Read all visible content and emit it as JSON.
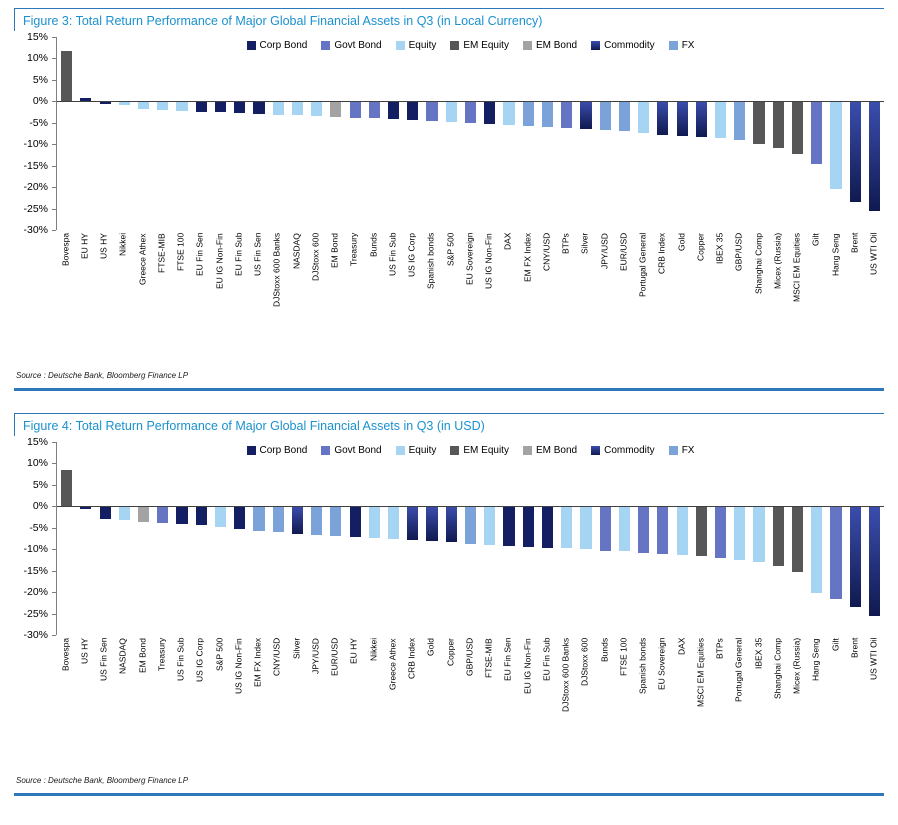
{
  "colors": {
    "corp_bond": "#141f63",
    "govt_bond": "#6674c4",
    "equity": "#a5d5f2",
    "em_equity": "#575757",
    "em_bond": "#a3a3a3",
    "commodity": [
      "#3b4eae",
      "#10194f"
    ],
    "fx": "#7ba3da",
    "title_blue": "#1b91d0",
    "rule_blue": "#2e77b8"
  },
  "chart_data": [
    {
      "type": "bar",
      "title": "Figure 3: Total Return Performance of Major Global Financial Assets in Q3 (in Local Currency)",
      "source": "Source : Deutsche Bank, Bloomberg Finance LP",
      "ylim": [
        -30,
        15
      ],
      "yticks": [
        "15%",
        "10%",
        "5%",
        "0%",
        "-5%",
        "-10%",
        "-15%",
        "-20%",
        "-25%",
        "-30%"
      ],
      "grid": false,
      "legend_position": "top-center",
      "legend": [
        {
          "label": "Corp Bond",
          "key": "corp_bond"
        },
        {
          "label": "Govt Bond",
          "key": "govt_bond"
        },
        {
          "label": "Equity",
          "key": "equity"
        },
        {
          "label": "EM Equity",
          "key": "em_equity"
        },
        {
          "label": "EM Bond",
          "key": "em_bond"
        },
        {
          "label": "Commodity",
          "key": "commodity"
        },
        {
          "label": "FX",
          "key": "fx"
        }
      ],
      "categories": [
        "Bovespa",
        "EU HY",
        "US HY",
        "Nikkei",
        "Greece Athex",
        "FTSE-MIB",
        "FTSE 100",
        "EU Fin Sen",
        "EU IG Non-Fin",
        "EU Fin Sub",
        "US Fin Sen",
        "DJStoxx 600 Banks",
        "NASDAQ",
        "DJStoxx 600",
        "EM Bond",
        "Treasury",
        "Bunds",
        "US Fin Sub",
        "US IG Corp",
        "Spanish bonds",
        "S&P 500",
        "EU Sovereign",
        "US IG Non-Fin",
        "DAX",
        "EM FX Index",
        "CNY/USD",
        "BTPs",
        "Silver",
        "JPY/USD",
        "EUR/USD",
        "Portugal General",
        "CRB Index",
        "Gold",
        "Copper",
        "IBEX 35",
        "GBP/USD",
        "Shanghai Comp",
        "Micex (Russia)",
        "MSCI EM Equities",
        "Gilt",
        "Hang Seng",
        "Brent",
        "US WTI Oil"
      ],
      "values": [
        11.8,
        0.7,
        -0.6,
        -0.9,
        -1.7,
        -2.0,
        -2.2,
        -2.5,
        -2.6,
        -2.8,
        -3.0,
        -3.2,
        -3.3,
        -3.5,
        -3.6,
        -3.8,
        -4.0,
        -4.2,
        -4.4,
        -4.6,
        -4.9,
        -5.0,
        -5.2,
        -5.5,
        -5.7,
        -6.0,
        -6.3,
        -6.5,
        -6.8,
        -7.0,
        -7.3,
        -7.8,
        -8.0,
        -8.3,
        -8.6,
        -9.0,
        -10.0,
        -10.8,
        -12.2,
        -14.5,
        -20.5,
        -23.5,
        -25.5
      ],
      "groups": [
        "em_equity",
        "corp_bond",
        "corp_bond",
        "equity",
        "equity",
        "equity",
        "equity",
        "corp_bond",
        "corp_bond",
        "corp_bond",
        "corp_bond",
        "equity",
        "equity",
        "equity",
        "em_bond",
        "govt_bond",
        "govt_bond",
        "corp_bond",
        "corp_bond",
        "govt_bond",
        "equity",
        "govt_bond",
        "corp_bond",
        "equity",
        "fx",
        "fx",
        "govt_bond",
        "commodity",
        "fx",
        "fx",
        "equity",
        "commodity",
        "commodity",
        "commodity",
        "equity",
        "fx",
        "em_equity",
        "em_equity",
        "em_equity",
        "govt_bond",
        "equity",
        "commodity",
        "commodity"
      ]
    },
    {
      "type": "bar",
      "title": "Figure 4: Total Return Performance of Major Global Financial Assets in Q3 (in USD)",
      "source": "Source : Deutsche Bank, Bloomberg Finance LP",
      "ylim": [
        -30,
        15
      ],
      "yticks": [
        "15%",
        "10%",
        "5%",
        "0%",
        "-5%",
        "-10%",
        "-15%",
        "-20%",
        "-25%",
        "-30%"
      ],
      "grid": false,
      "legend_position": "top-center",
      "legend": [
        {
          "label": "Corp Bond",
          "key": "corp_bond"
        },
        {
          "label": "Govt Bond",
          "key": "govt_bond"
        },
        {
          "label": "Equity",
          "key": "equity"
        },
        {
          "label": "EM Equity",
          "key": "em_equity"
        },
        {
          "label": "EM Bond",
          "key": "em_bond"
        },
        {
          "label": "Commodity",
          "key": "commodity"
        },
        {
          "label": "FX",
          "key": "fx"
        }
      ],
      "categories": [
        "Bovespa",
        "US HY",
        "US Fin Sen",
        "NASDAQ",
        "EM Bond",
        "Treasury",
        "US Fin Sub",
        "US IG Corp",
        "S&P 500",
        "US IG Non-Fin",
        "EM FX Index",
        "CNY/USD",
        "Silver",
        "JPY/USD",
        "EUR/USD",
        "EU HY",
        "Nikkei",
        "Greece Athex",
        "CRB Index",
        "Gold",
        "Copper",
        "GBP/USD",
        "FTSE-MIB",
        "EU Fin Sen",
        "EU IG Non-Fin",
        "EU Fin Sub",
        "DJStoxx 600 Banks",
        "DJStoxx 600",
        "Bunds",
        "FTSE 100",
        "Spanish bonds",
        "EU Sovereign",
        "DAX",
        "MSCI EM Equities",
        "BTPs",
        "Portugal General",
        "IBEX 35",
        "Shanghai Comp",
        "Micex (Russia)",
        "Hang Seng",
        "Gilt",
        "Brent",
        "US WTI Oil"
      ],
      "values": [
        8.5,
        -0.6,
        -3.0,
        -3.3,
        -3.6,
        -3.8,
        -4.2,
        -4.4,
        -4.9,
        -5.2,
        -5.7,
        -6.0,
        -6.4,
        -6.6,
        -7.0,
        -7.1,
        -7.4,
        -7.6,
        -7.8,
        -8.0,
        -8.3,
        -8.8,
        -9.0,
        -9.2,
        -9.4,
        -9.6,
        -9.8,
        -10.0,
        -10.3,
        -10.5,
        -10.8,
        -11.0,
        -11.3,
        -11.6,
        -12.0,
        -12.4,
        -13.0,
        -14.0,
        -15.2,
        -20.3,
        -21.5,
        -23.5,
        -25.5
      ],
      "groups": [
        "em_equity",
        "corp_bond",
        "corp_bond",
        "equity",
        "em_bond",
        "govt_bond",
        "corp_bond",
        "corp_bond",
        "equity",
        "corp_bond",
        "fx",
        "fx",
        "commodity",
        "fx",
        "fx",
        "corp_bond",
        "equity",
        "equity",
        "commodity",
        "commodity",
        "commodity",
        "fx",
        "equity",
        "corp_bond",
        "corp_bond",
        "corp_bond",
        "equity",
        "equity",
        "govt_bond",
        "equity",
        "govt_bond",
        "govt_bond",
        "equity",
        "em_equity",
        "govt_bond",
        "equity",
        "equity",
        "em_equity",
        "em_equity",
        "equity",
        "govt_bond",
        "commodity",
        "commodity"
      ]
    }
  ]
}
